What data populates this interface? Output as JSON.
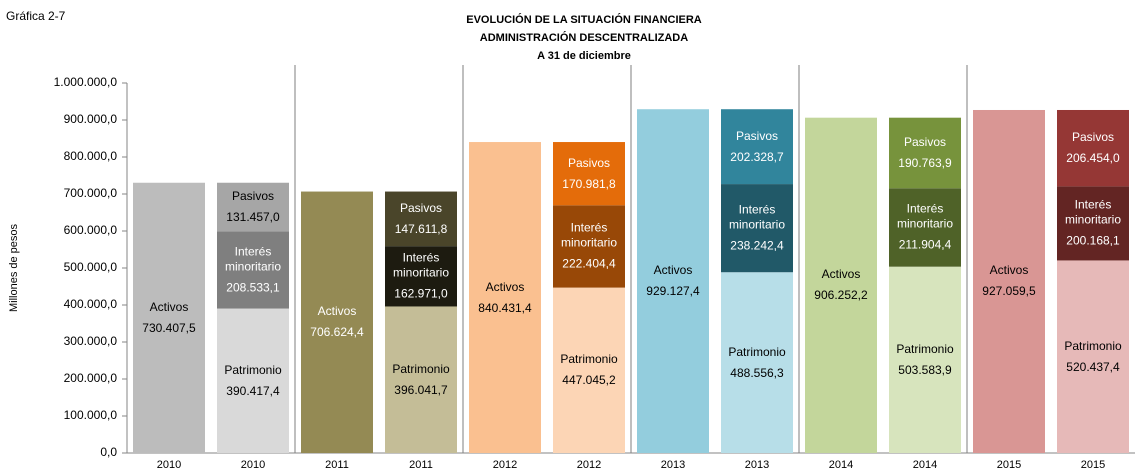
{
  "chart_data": {
    "type": "stacked_bar",
    "figure_label": "Gráfica 2-7",
    "title": [
      "EVOLUCIÓN DE LA SITUACIÓN FINANCIERA",
      "ADMINISTRACIÓN DESCENTRALIZADA",
      "A 31 de diciembre"
    ],
    "y_axis_label": "Millones de pesos",
    "categories": [
      "2010",
      "2010",
      "2011",
      "2011",
      "2012",
      "2012",
      "2013",
      "2013",
      "2014",
      "2014",
      "2015",
      "2015"
    ],
    "series": [
      {
        "name": "Activos",
        "values": [
          730407.5,
          null,
          706624.4,
          null,
          840431.4,
          null,
          929127.4,
          null,
          906252.2,
          null,
          927059.5,
          null
        ],
        "value_labels": [
          "730.407,5",
          null,
          "706.624,4",
          null,
          "840.431,4",
          null,
          "929.127,4",
          null,
          "906.252,2",
          null,
          "927.059,5",
          null
        ],
        "colors": [
          "#bcbcbc",
          null,
          "#948a54",
          null,
          "#fac090",
          null,
          "#93cddd",
          null,
          "#c3d69b",
          null,
          "#d99694",
          null
        ]
      },
      {
        "name": "Patrimonio",
        "values": [
          null,
          390417.4,
          null,
          396041.7,
          null,
          447045.2,
          null,
          488556.3,
          null,
          503583.9,
          null,
          520437.4
        ],
        "value_labels": [
          null,
          "390.417,4",
          null,
          "396.041,7",
          null,
          "447.045,2",
          null,
          "488.556,3",
          null,
          "503.583,9",
          null,
          "520.437,4"
        ],
        "colors": [
          null,
          "#d9d9d9",
          null,
          "#c4bd97",
          null,
          "#fcd5b5",
          null,
          "#b7dee8",
          null,
          "#d7e4bd",
          null,
          "#e6b9b8"
        ]
      },
      {
        "name": "Interés minoritario",
        "values": [
          null,
          208533.1,
          null,
          162971.0,
          null,
          222404.4,
          null,
          238242.4,
          null,
          211904.4,
          null,
          200168.1
        ],
        "value_labels": [
          null,
          "208.533,1",
          null,
          "162.971,0",
          null,
          "222.404,4",
          null,
          "238.242,4",
          null,
          "211.904,4",
          null,
          "200.168,1"
        ],
        "colors": [
          null,
          "#7f7f7f",
          null,
          "#1d1b10",
          null,
          "#984807",
          null,
          "#215968",
          null,
          "#4f6228",
          null,
          "#632523"
        ]
      },
      {
        "name": "Pasivos",
        "values": [
          null,
          131457.0,
          null,
          147611.8,
          null,
          170981.8,
          null,
          202328.7,
          null,
          190763.9,
          null,
          206454.0
        ],
        "value_labels": [
          null,
          "131.457,0",
          null,
          "147.611,8",
          null,
          "170.981,8",
          null,
          "202.328,7",
          null,
          "190.763,9",
          null,
          "206.454,0"
        ],
        "colors": [
          null,
          "#a6a6a6",
          null,
          "#4a452a",
          null,
          "#e46c0a",
          null,
          "#31859c",
          null,
          "#77933c",
          null,
          "#953735"
        ]
      }
    ],
    "ylim": [
      0,
      1000000
    ],
    "yticks": [
      {
        "value": 0,
        "label": "0,0"
      },
      {
        "value": 100000,
        "label": "100.000,0"
      },
      {
        "value": 200000,
        "label": "200.000,0"
      },
      {
        "value": 300000,
        "label": "300.000,0"
      },
      {
        "value": 400000,
        "label": "400.000,0"
      },
      {
        "value": 500000,
        "label": "500.000,0"
      },
      {
        "value": 600000,
        "label": "600.000,0"
      },
      {
        "value": 700000,
        "label": "700.000,0"
      },
      {
        "value": 800000,
        "label": "800.000,0"
      },
      {
        "value": 900000,
        "label": "900.000,0"
      },
      {
        "value": 1000000,
        "label": "1.000.000,0"
      }
    ]
  }
}
